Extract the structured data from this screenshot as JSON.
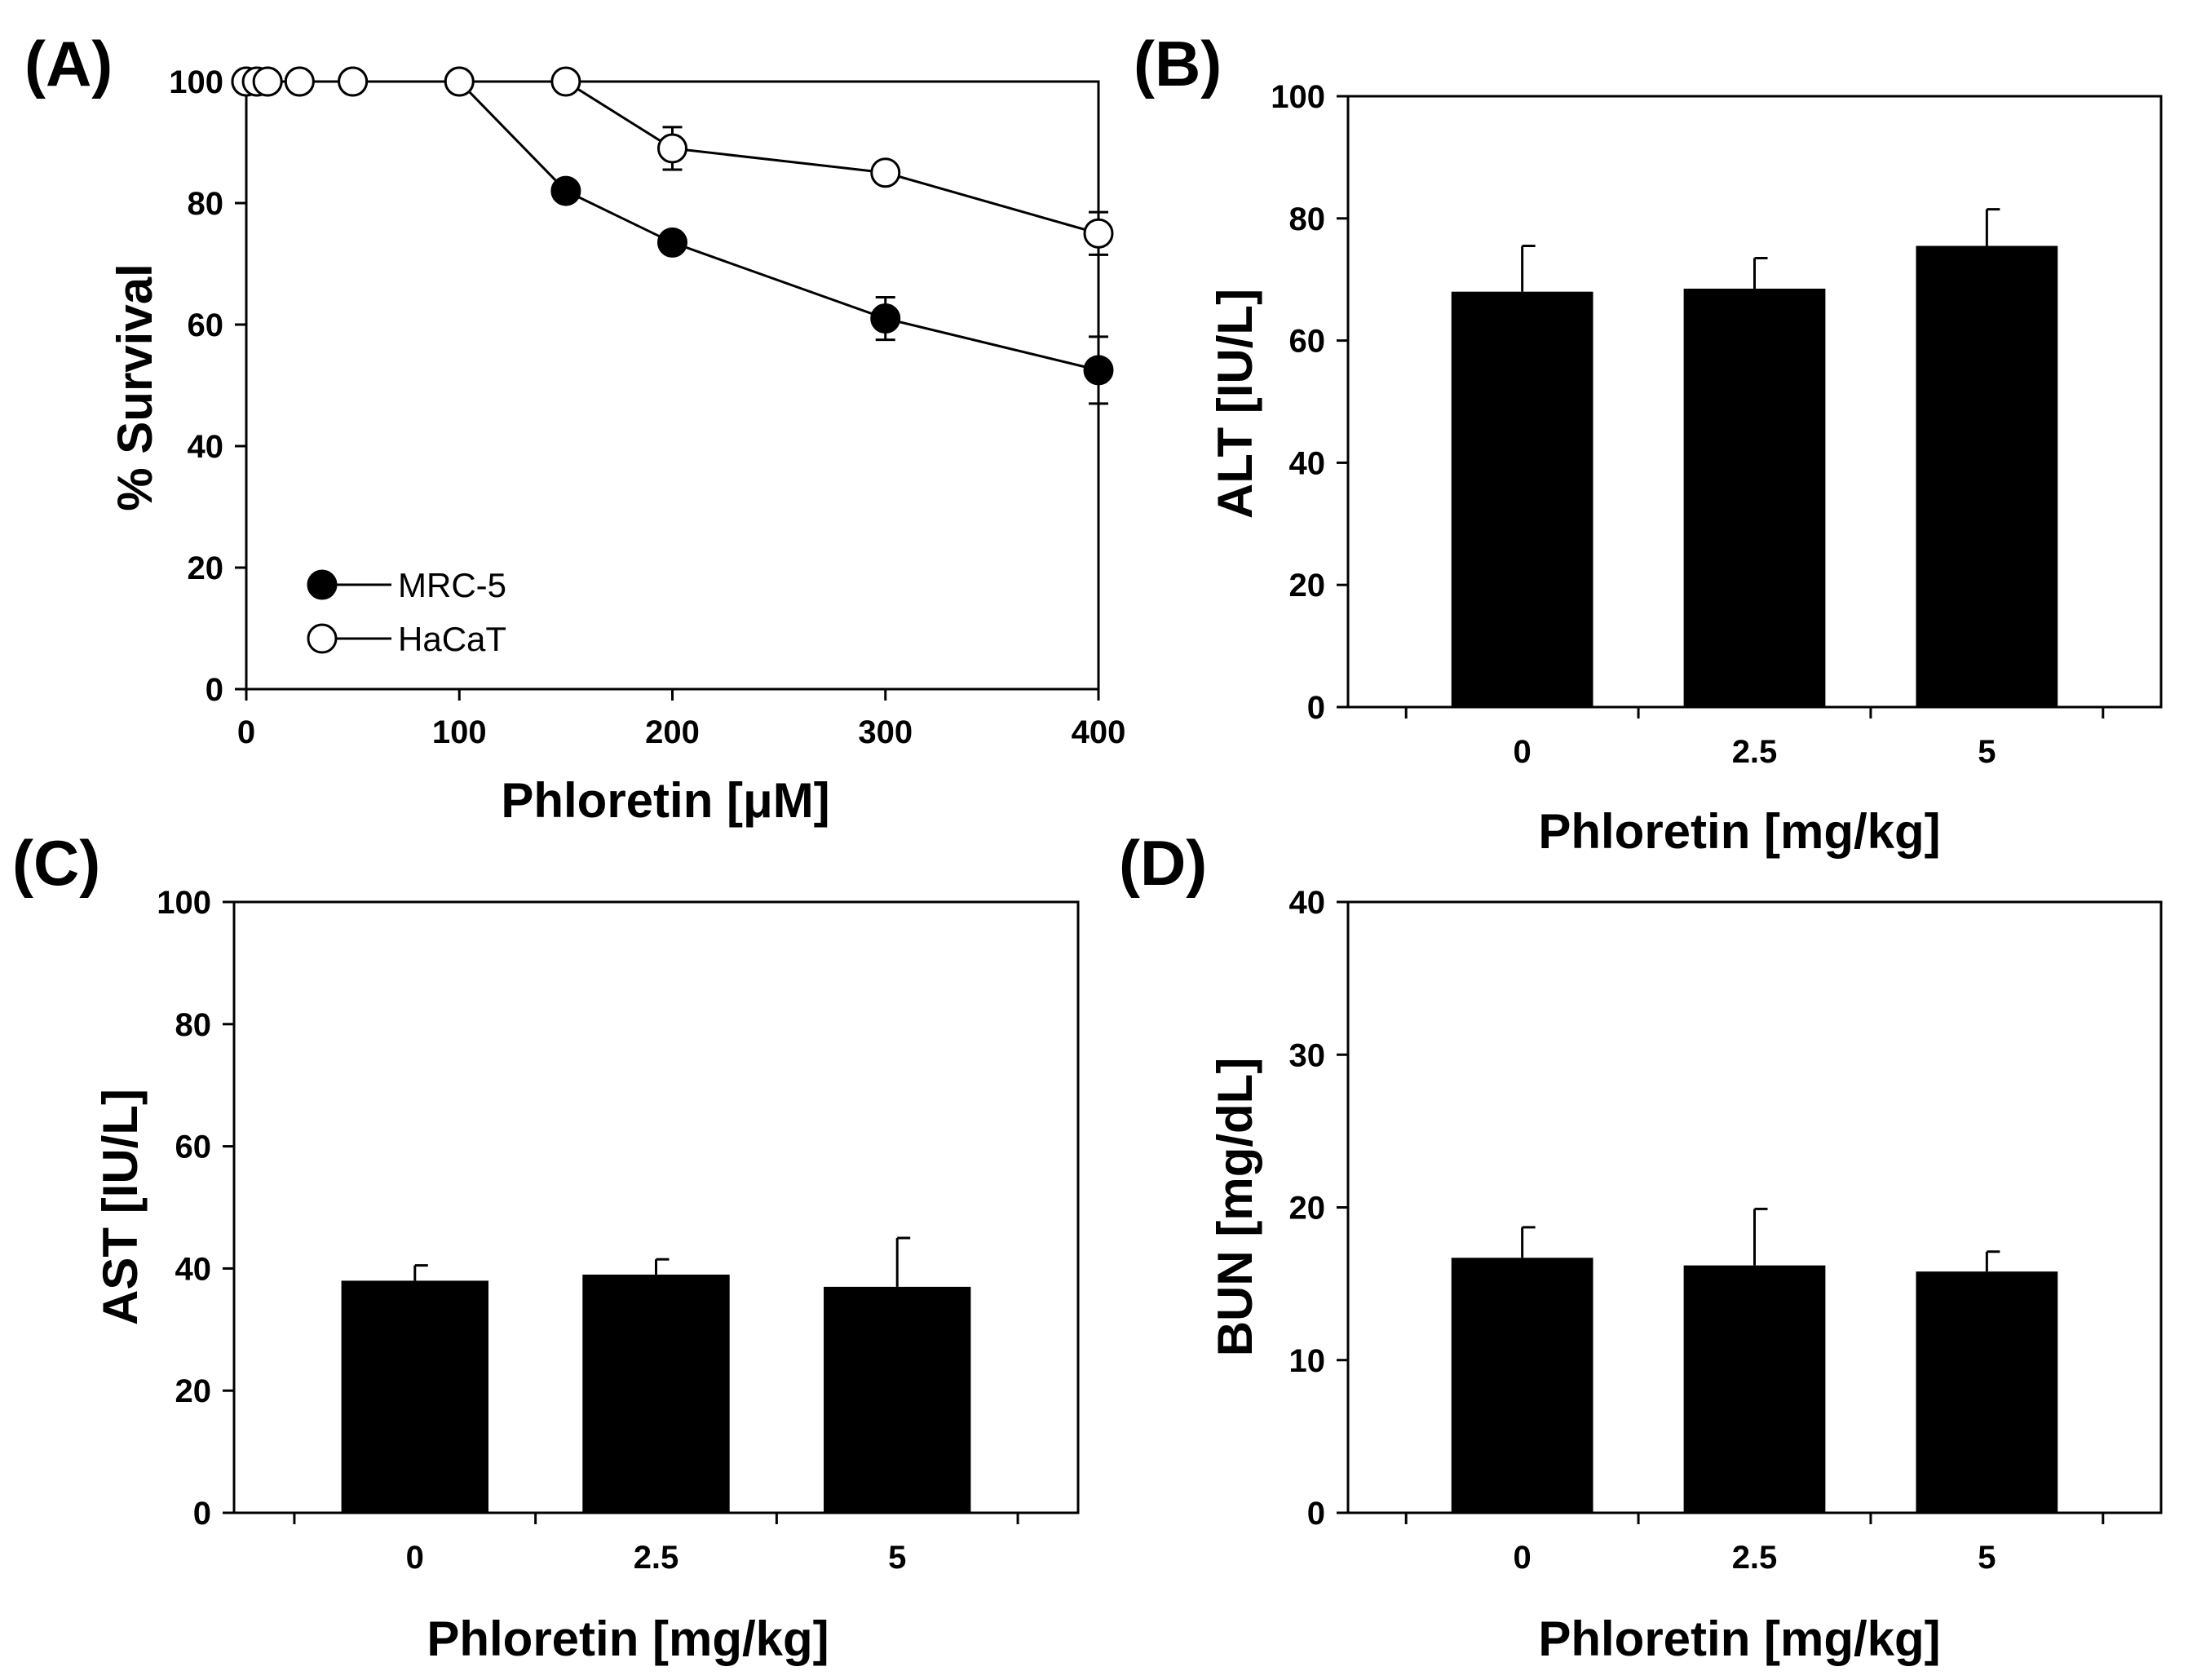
{
  "chart_data": [
    {
      "id": "A",
      "panel_label": "(A)",
      "type": "line",
      "title": "",
      "xlabel": "Phloretin [μM]",
      "ylabel": "% Survival",
      "xlim": [
        0,
        400
      ],
      "ylim": [
        0,
        100
      ],
      "xticks": [
        0,
        100,
        200,
        300,
        400
      ],
      "yticks": [
        0,
        20,
        40,
        60,
        80,
        100
      ],
      "legend_position": "bottom-left",
      "series": [
        {
          "name": "MRC-5",
          "marker": "filled-circle",
          "x": [
            0,
            5,
            10,
            25,
            50,
            100,
            150,
            200,
            300,
            400
          ],
          "y": [
            100,
            100,
            100,
            100,
            100,
            100,
            82,
            73.5,
            61,
            52.5
          ],
          "err": [
            0,
            0,
            0,
            0,
            0,
            0,
            1.5,
            1.5,
            3.5,
            5.5
          ]
        },
        {
          "name": "HaCaT",
          "marker": "open-circle",
          "x": [
            0,
            5,
            10,
            25,
            50,
            100,
            150,
            200,
            300,
            400
          ],
          "y": [
            100,
            100,
            100,
            100,
            100,
            100,
            100,
            89,
            85,
            75
          ],
          "err": [
            0,
            0,
            0,
            0,
            0,
            0,
            0,
            3.5,
            1,
            3.5
          ]
        }
      ]
    },
    {
      "id": "B",
      "panel_label": "(B)",
      "type": "bar",
      "title": "",
      "xlabel": "Phloretin [mg/kg]",
      "ylabel": "ALT [IU/L]",
      "categories": [
        "0",
        "2.5",
        "5"
      ],
      "values": [
        68,
        68.5,
        75.5
      ],
      "err": [
        7.5,
        5,
        6
      ],
      "ylim": [
        0,
        100
      ],
      "yticks": [
        0,
        20,
        40,
        60,
        80,
        100
      ]
    },
    {
      "id": "C",
      "panel_label": "(C)",
      "type": "bar",
      "title": "",
      "xlabel": "Phloretin [mg/kg]",
      "ylabel": "AST [IU/L]",
      "categories": [
        "0",
        "2.5",
        "5"
      ],
      "values": [
        38,
        39,
        37
      ],
      "err": [
        2.5,
        2.5,
        8
      ],
      "ylim": [
        0,
        100
      ],
      "yticks": [
        0,
        20,
        40,
        60,
        80,
        100
      ]
    },
    {
      "id": "D",
      "panel_label": "(D)",
      "type": "bar",
      "title": "",
      "xlabel": "Phloretin [mg/kg]",
      "ylabel": "BUN [mg/dL]",
      "categories": [
        "0",
        "2.5",
        "5"
      ],
      "values": [
        16.7,
        16.2,
        15.8
      ],
      "err": [
        2,
        3.7,
        1.3
      ],
      "ylim": [
        0,
        40
      ],
      "yticks": [
        0,
        10,
        20,
        30,
        40
      ]
    }
  ]
}
